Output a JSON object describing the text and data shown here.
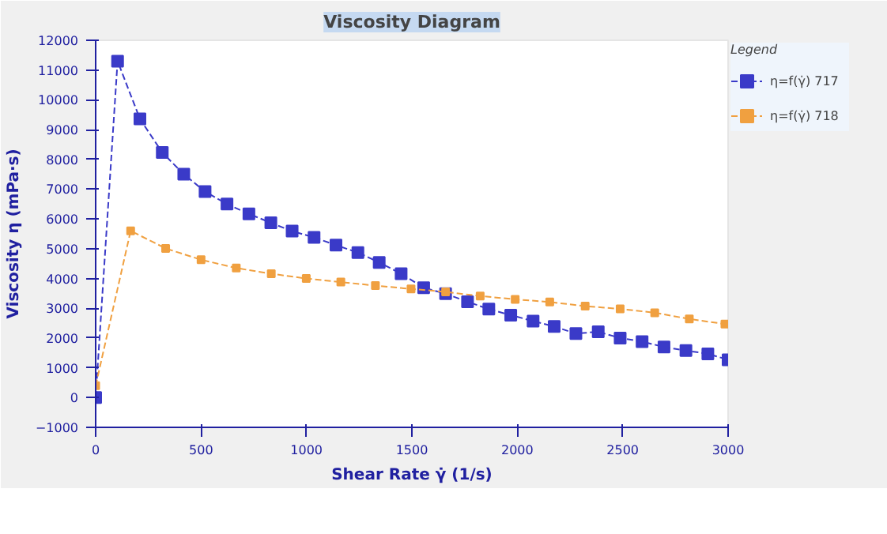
{
  "chart_data": {
    "type": "line",
    "title": "Viscosity Diagram",
    "xlabel": "Shear Rate γ̇ (1/s)",
    "ylabel": "Viscosity η (mPa·s)",
    "legend_title": "Legend",
    "legend": "right",
    "grid": false,
    "marker": "square",
    "line_style": "dashed",
    "xlim": [
      0,
      3000
    ],
    "ylim": [
      -1000,
      12000
    ],
    "xticks": [
      0,
      500,
      1000,
      1500,
      2000,
      2500,
      3000
    ],
    "yticks": [
      -1000,
      0,
      1000,
      2000,
      3000,
      4000,
      5000,
      6000,
      7000,
      8000,
      9000,
      10000,
      11000,
      12000
    ],
    "series": [
      {
        "name": "η=f(γ̇) 717",
        "color": "#3a3ac8",
        "x": [
          0,
          104,
          210,
          316,
          418,
          519,
          623,
          727,
          831,
          932,
          1036,
          1140,
          1244,
          1345,
          1449,
          1556,
          1660,
          1764,
          1865,
          1969,
          2075,
          2175,
          2278,
          2384,
          2488,
          2592,
          2696,
          2800,
          2904,
          3000
        ],
        "values": [
          0,
          11300,
          9360,
          8230,
          7500,
          6920,
          6500,
          6170,
          5870,
          5590,
          5380,
          5120,
          4870,
          4540,
          4160,
          3690,
          3490,
          3220,
          2970,
          2770,
          2570,
          2390,
          2150,
          2210,
          2000,
          1880,
          1700,
          1580,
          1470,
          1270
        ]
      },
      {
        "name": "η=f(γ̇) 718",
        "color": "#f0a040",
        "x": [
          0,
          166,
          332,
          500,
          667,
          833,
          999,
          1163,
          1327,
          1496,
          1660,
          1824,
          1990,
          2154,
          2322,
          2488,
          2652,
          2816,
          2985
        ],
        "values": [
          400,
          5600,
          5010,
          4630,
          4350,
          4160,
          4000,
          3880,
          3760,
          3650,
          3550,
          3410,
          3300,
          3210,
          3070,
          2980,
          2850,
          2640,
          2470
        ]
      }
    ]
  }
}
